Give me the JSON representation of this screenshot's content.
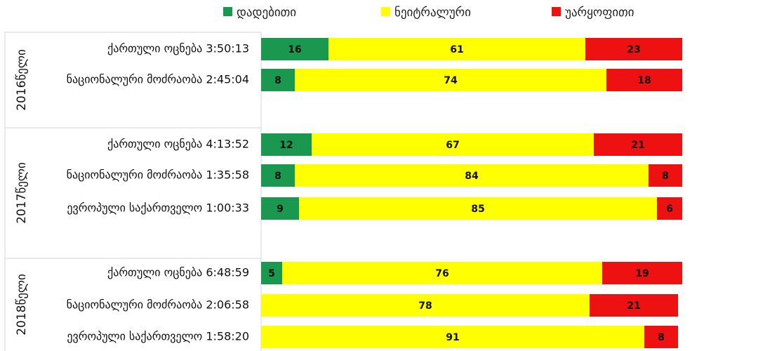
{
  "chart_data": {
    "type": "bar",
    "stacked": true,
    "orientation": "horizontal",
    "percent": true,
    "legend": [
      {
        "name": "დადებითი",
        "color": "#1a9850"
      },
      {
        "name": "ნეიტრალური",
        "color": "#ffff00"
      },
      {
        "name": "უარყოფითი",
        "color": "#ee1111"
      }
    ],
    "groups": [
      {
        "label": "2016წელი",
        "rows": [
          {
            "label": "ქართული ოცნება 3:50:13",
            "values": [
              16,
              61,
              23
            ]
          },
          {
            "label": "ნაციონალური მოძრაობა 2:45:04",
            "values": [
              8,
              74,
              18
            ]
          }
        ]
      },
      {
        "label": "2017წელი",
        "rows": [
          {
            "label": "ქართული ოცნება 4:13:52",
            "values": [
              12,
              67,
              21
            ]
          },
          {
            "label": "ნაციონალური მოძრაობა 1:35:58",
            "values": [
              8,
              84,
              8
            ]
          },
          {
            "label": "ევროპული საქართველო 1:00:33",
            "values": [
              9,
              85,
              6
            ]
          }
        ]
      },
      {
        "label": "2018წელი",
        "rows": [
          {
            "label": "ქართული ოცნება 6:48:59",
            "values": [
              5,
              76,
              19
            ]
          },
          {
            "label": "ნაციონალური მოძრაობა 2:06:58",
            "values": [
              null,
              78,
              21
            ]
          },
          {
            "label": "ევროპული საქართველო 1:58:20",
            "values": [
              null,
              91,
              8
            ]
          }
        ]
      }
    ]
  }
}
